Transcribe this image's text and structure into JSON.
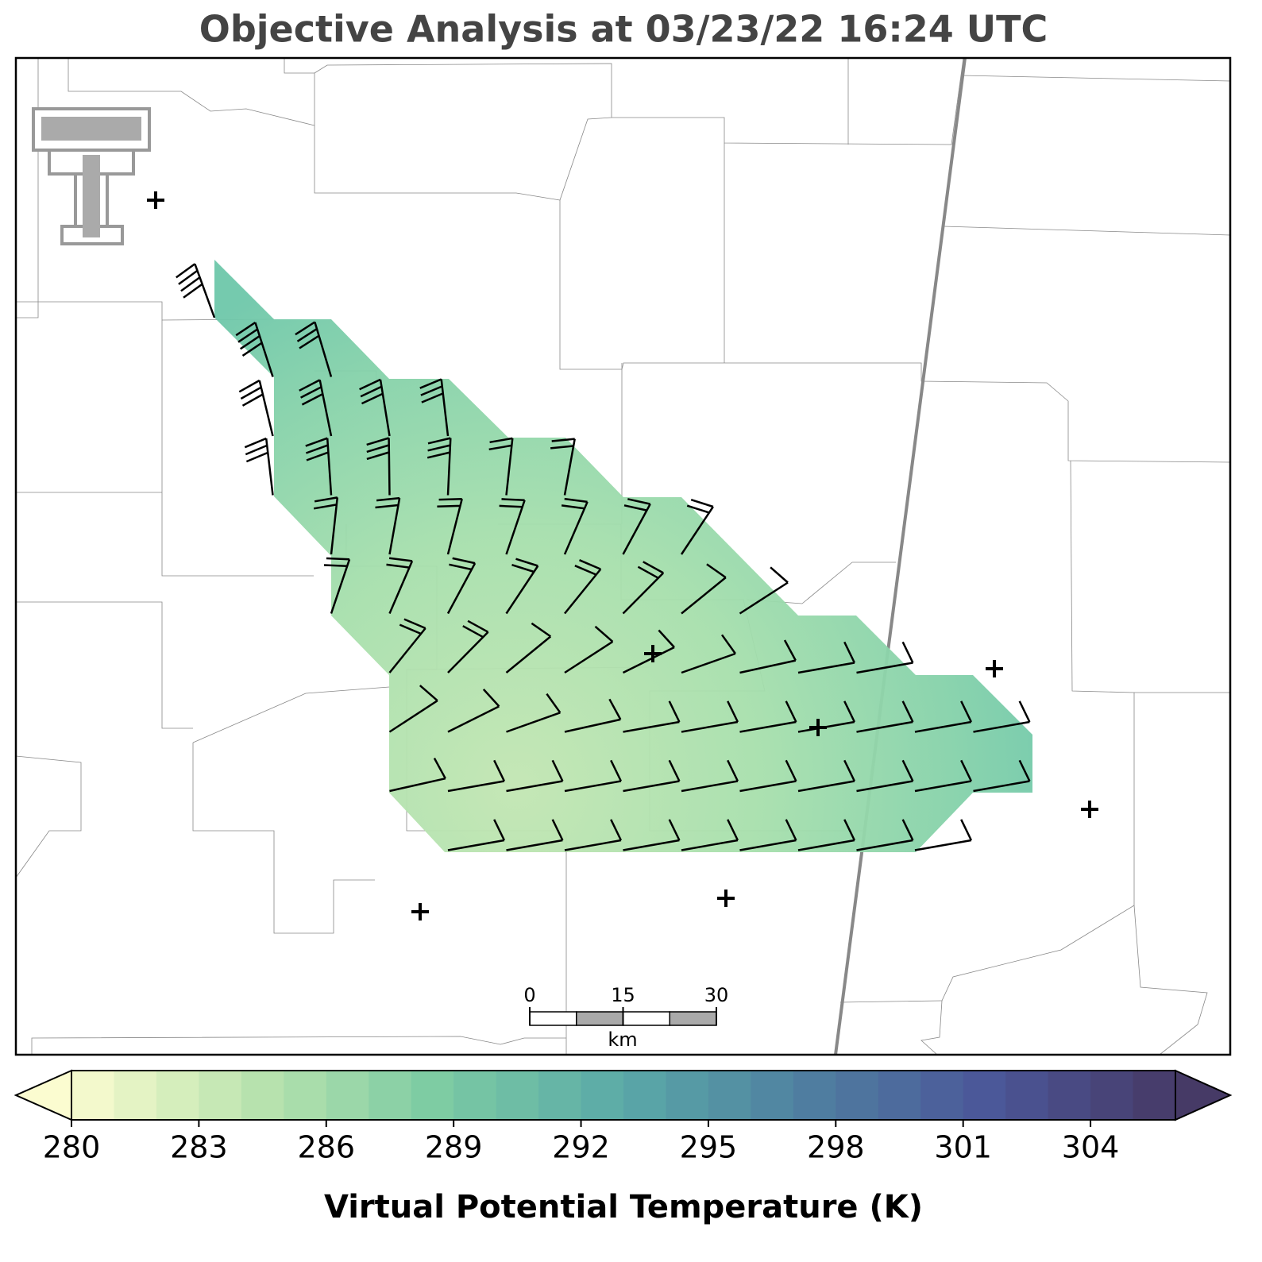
{
  "title": "Objective Analysis at 03/23/22 16:24 UTC",
  "scale_bar": {
    "ticks": [
      0,
      15,
      30
    ],
    "unit": "km"
  },
  "colorbar": {
    "label": "Virtual Potential Temperature (K)",
    "range": [
      280,
      306
    ],
    "ticks": [
      280,
      283,
      286,
      289,
      292,
      295,
      298,
      301,
      304
    ],
    "colors": [
      "#fbfcd0",
      "#b9e3ae",
      "#7ccba3",
      "#5aa9a8",
      "#4f7fa0",
      "#4b5699",
      "#463a66"
    ]
  }
}
